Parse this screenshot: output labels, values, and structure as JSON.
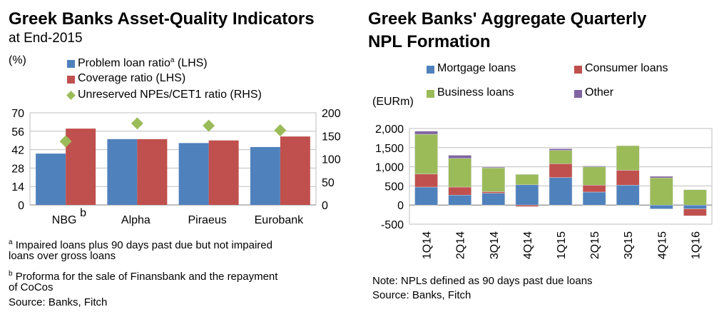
{
  "colors": {
    "blue": "#4F81BD",
    "red": "#C0504D",
    "green": "#9BBB59",
    "purple": "#8064A2",
    "grid": "#bfbfbf"
  },
  "left": {
    "title": "Greek Banks Asset-Quality Indicators",
    "subtitle": "at End-2015",
    "unit": "(%)",
    "legend": [
      {
        "label": "Problem loan ratio",
        "sup": "a",
        "suffix": " (LHS)"
      },
      {
        "label": "Coverage ratio (LHS)"
      },
      {
        "label": "Unreserved NPEs/CET1 ratio (RHS)"
      }
    ],
    "footnotes": {
      "a_mark": "a",
      "a_line1": " Impaired loans plus 90 days past due but not impaired",
      "a_line2": "loans over gross loans",
      "b_mark": "b",
      "b_line1": " Proforma for the sale of Finansbank and the repayment",
      "b_line2": "of CoCos",
      "source": "Source: Banks, Fitch"
    }
  },
  "right": {
    "title_line1": "Greek Banks' Aggregate Quarterly",
    "title_line2": "NPL Formation",
    "unit": "(EURm)",
    "legend": [
      "Mortgage loans",
      "Consumer loans",
      "Business loans",
      "Other"
    ],
    "note": "Note: NPLs defined as 90 days past due loans",
    "source": "Source: Banks, Fitch"
  },
  "chart_data": [
    {
      "type": "bar",
      "title": "Greek Banks Asset-Quality Indicators at End-2015",
      "ylabel": "(%)",
      "categories": [
        "NBG",
        "Alpha",
        "Piraeus",
        "Eurobank"
      ],
      "category_sup": [
        "b",
        "",
        "",
        ""
      ],
      "series": [
        {
          "name": "Problem loan ratio (LHS)",
          "axis": "left",
          "values": [
            39,
            50,
            47,
            44
          ]
        },
        {
          "name": "Coverage ratio (LHS)",
          "axis": "left",
          "values": [
            58,
            50,
            49,
            52
          ]
        },
        {
          "name": "Unreserved NPEs/CET1 ratio (RHS)",
          "axis": "right",
          "marker": "diamond",
          "values": [
            138,
            177,
            172,
            162
          ]
        }
      ],
      "ylim": [
        0,
        70
      ],
      "yticks": [
        "70",
        "56",
        "42",
        "28",
        "14",
        "0"
      ],
      "y2lim": [
        0,
        200
      ],
      "y2ticks": [
        "200",
        "150",
        "100",
        "50",
        "0"
      ]
    },
    {
      "type": "bar",
      "stacked": true,
      "title": "Greek Banks' Aggregate Quarterly NPL Formation",
      "ylabel": "(EURm)",
      "categories": [
        "1Q14",
        "2Q14",
        "3Q14",
        "4Q14",
        "1Q15",
        "2Q15",
        "3Q15",
        "4Q15",
        "1Q16"
      ],
      "series": [
        {
          "name": "Mortgage loans",
          "values": [
            470,
            260,
            310,
            530,
            720,
            340,
            520,
            -100,
            -100
          ]
        },
        {
          "name": "Consumer loans",
          "values": [
            340,
            210,
            40,
            -40,
            360,
            180,
            390,
            0,
            -180
          ]
        },
        {
          "name": "Business loans",
          "values": [
            1040,
            750,
            620,
            270,
            350,
            480,
            640,
            710,
            400
          ]
        },
        {
          "name": "Other",
          "values": [
            80,
            80,
            20,
            0,
            40,
            20,
            0,
            40,
            0
          ]
        }
      ],
      "ylim": [
        -500,
        2000
      ],
      "yticks": [
        "2,000",
        "1,500",
        "1,000",
        "500",
        "0",
        "-500"
      ]
    }
  ]
}
